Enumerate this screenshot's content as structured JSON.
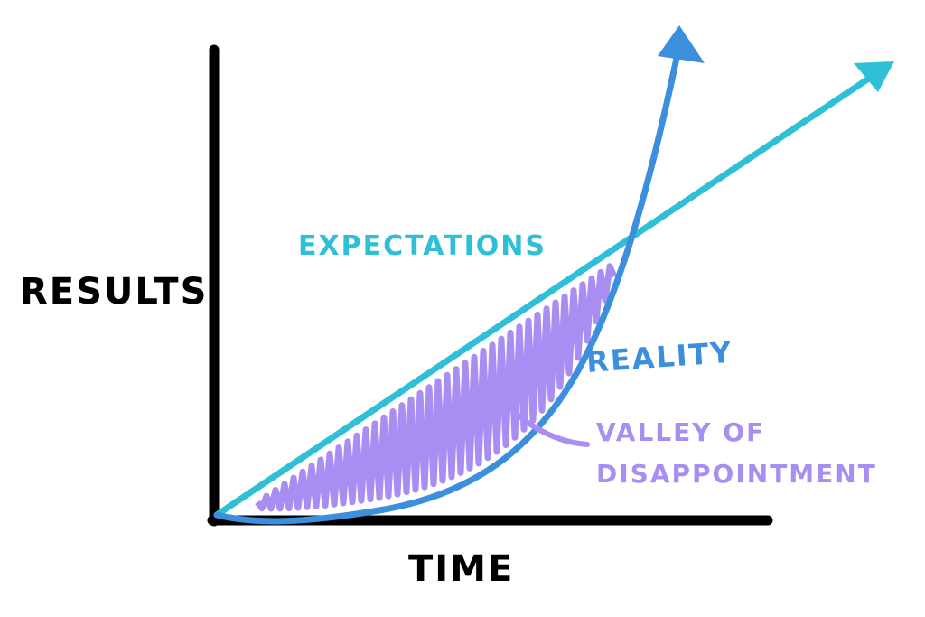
{
  "labels": {
    "y_axis": "RESULTS",
    "x_axis": "TIME",
    "expectations": "EXPECTATIONS",
    "reality": "REALITY",
    "valley_line1": "VALLEY OF",
    "valley_line2": "DISAPPOINTMENT"
  },
  "colors": {
    "axis": "#000000",
    "expectations": "#2fbfd6",
    "reality": "#3b8fdc",
    "valley": "#a88ef2"
  }
}
